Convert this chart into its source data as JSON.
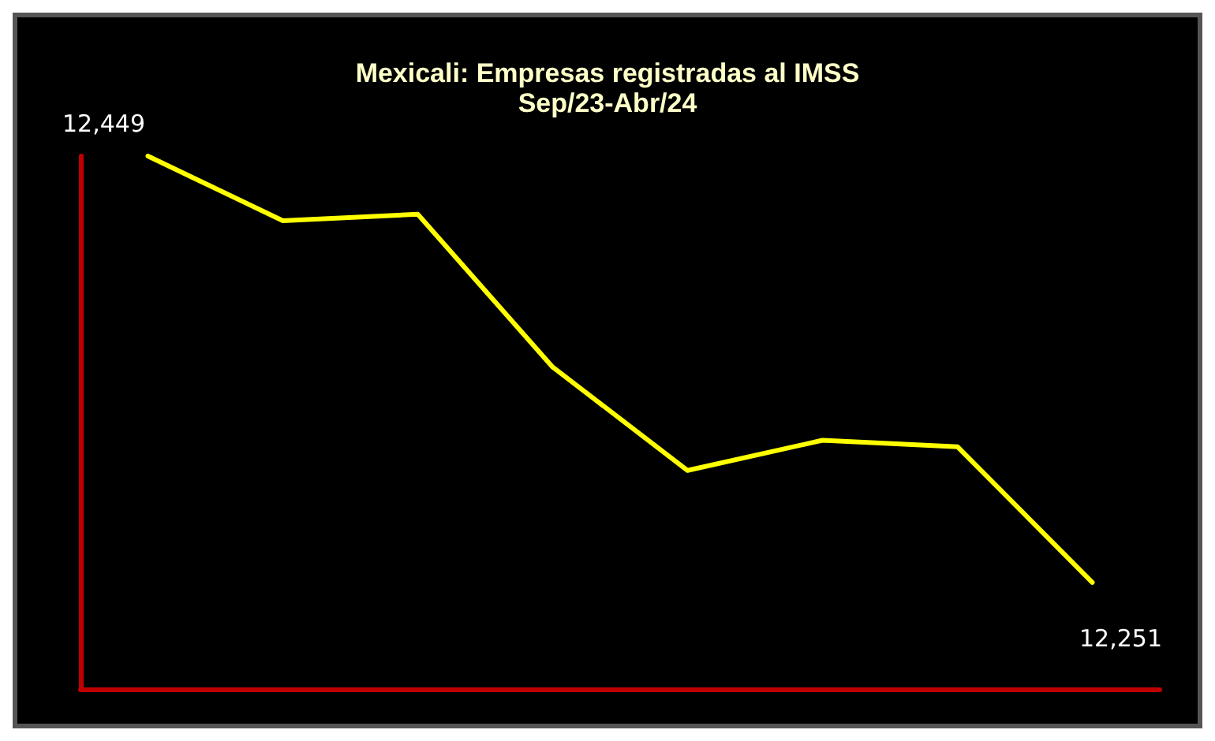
{
  "chart_data": {
    "type": "line",
    "title": "Mexicali: Empresas registradas al IMSS",
    "subtitle": "Sep/23-Abr/24",
    "categories": [
      null,
      null,
      null,
      null,
      null,
      null,
      null,
      null
    ],
    "series": [
      {
        "color": "#ffff00",
        "values": [
          12449,
          12419,
          12422,
          12351,
          12303,
          12317,
          12314,
          12251
        ],
        "value_labels": [
          "12,449",
          null,
          null,
          null,
          null,
          null,
          null,
          "12,251"
        ]
      }
    ],
    "marker": "none",
    "line_style": "solid"
  }
}
